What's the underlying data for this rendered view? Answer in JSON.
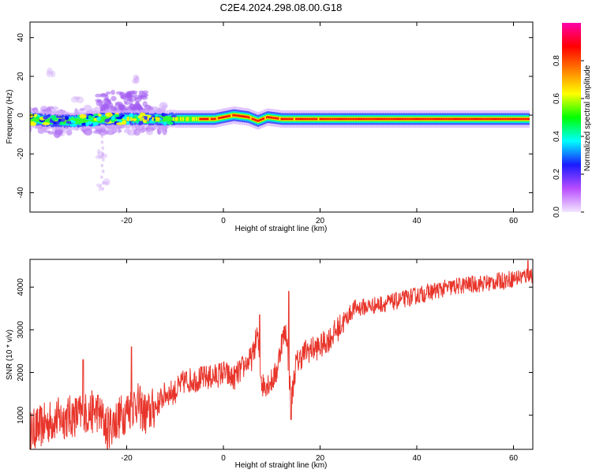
{
  "title": "C2E4.2024.298.08.00.G18",
  "chart_data": [
    {
      "type": "heatmap",
      "xlabel": "Height of straight line (km)",
      "ylabel": "Frequency (Hz)",
      "xlim": [
        -40,
        64
      ],
      "ylim": [
        -50,
        48
      ],
      "xticks": [
        -20,
        0,
        20,
        40,
        60
      ],
      "yticks": [
        -40,
        -20,
        0,
        20,
        40
      ],
      "colorbar": {
        "label": "Normalized spectral amplitude",
        "range": [
          0,
          1
        ],
        "ticks": [
          "0.0",
          "0.2",
          "0.4",
          "0.6",
          "0.8"
        ],
        "colors": [
          "#f2e6ff",
          "#b84dff",
          "#1a1aff",
          "#00ffff",
          "#00ff00",
          "#ffff00",
          "#ff7f00",
          "#ff0000",
          "#ff00aa"
        ]
      },
      "center_track": [
        [
          -40,
          -2
        ],
        [
          -35,
          -3
        ],
        [
          -30,
          -3
        ],
        [
          -25,
          -2
        ],
        [
          -20,
          -2
        ],
        [
          -15,
          -2
        ],
        [
          -10,
          -2
        ],
        [
          -5,
          -2
        ],
        [
          -2,
          -2
        ],
        [
          0,
          -1
        ],
        [
          2,
          0
        ],
        [
          5,
          -1
        ],
        [
          7,
          -3
        ],
        [
          9,
          -1
        ],
        [
          12,
          -2
        ],
        [
          15,
          -2
        ],
        [
          20,
          -2
        ],
        [
          30,
          -2
        ],
        [
          40,
          -2
        ],
        [
          50,
          -2
        ],
        [
          60,
          -2
        ],
        [
          63,
          -2
        ]
      ],
      "scattered_features": [
        {
          "x": -36,
          "y": 22,
          "amp": 0.05
        },
        {
          "x": -30,
          "y": 8,
          "amp": 0.1
        },
        {
          "x": -25,
          "y": 4,
          "amp": 0.3
        },
        {
          "x": -20,
          "y": 10,
          "amp": 0.1
        },
        {
          "x": -18,
          "y": 18,
          "amp": 0.05
        },
        {
          "x": -25,
          "y": -20,
          "amp": 0.08
        },
        {
          "x": -25,
          "y": -36,
          "amp": 0.12
        },
        {
          "x": -34,
          "y": -8,
          "amp": 0.12
        }
      ]
    },
    {
      "type": "line",
      "xlabel": "Height of straight line (km)",
      "ylabel": "SNR (10 * v/v)",
      "xlim": [
        -40,
        64
      ],
      "ylim": [
        200,
        4650
      ],
      "xticks": [
        -20,
        0,
        20,
        40,
        60
      ],
      "yticks": [
        1000,
        2000,
        3000,
        4000
      ],
      "color": "#e8352b",
      "trend": [
        [
          -40,
          600
        ],
        [
          -35,
          900
        ],
        [
          -30,
          1000
        ],
        [
          -26,
          1100
        ],
        [
          -24,
          700
        ],
        [
          -20,
          1100
        ],
        [
          -18,
          1300
        ],
        [
          -16,
          1000
        ],
        [
          -14,
          1200
        ],
        [
          -12,
          1500
        ],
        [
          -10,
          1550
        ],
        [
          -8,
          1800
        ],
        [
          -5,
          1850
        ],
        [
          -2,
          1900
        ],
        [
          0,
          2000
        ],
        [
          2,
          1850
        ],
        [
          4,
          2100
        ],
        [
          6,
          2350
        ],
        [
          7,
          2900
        ],
        [
          8,
          1700
        ],
        [
          10,
          1800
        ],
        [
          11,
          2000
        ],
        [
          12,
          2700
        ],
        [
          13,
          3000
        ],
        [
          14,
          1300
        ],
        [
          15,
          2200
        ],
        [
          17,
          2500
        ],
        [
          20,
          2600
        ],
        [
          22,
          2800
        ],
        [
          25,
          3200
        ],
        [
          27,
          3500
        ],
        [
          30,
          3550
        ],
        [
          35,
          3650
        ],
        [
          40,
          3800
        ],
        [
          45,
          3950
        ],
        [
          50,
          4050
        ],
        [
          55,
          4100
        ],
        [
          60,
          4200
        ],
        [
          64,
          4300
        ]
      ],
      "spikes": [
        {
          "x": -29,
          "y": 2300
        },
        {
          "x": -19,
          "y": 2600
        },
        {
          "x": -24,
          "y": 200
        },
        {
          "x": 7.5,
          "y": 3350
        },
        {
          "x": 13.5,
          "y": 3900
        },
        {
          "x": 14,
          "y": 900
        },
        {
          "x": 4.5,
          "y": 2150
        },
        {
          "x": 63,
          "y": 4620
        }
      ]
    }
  ]
}
